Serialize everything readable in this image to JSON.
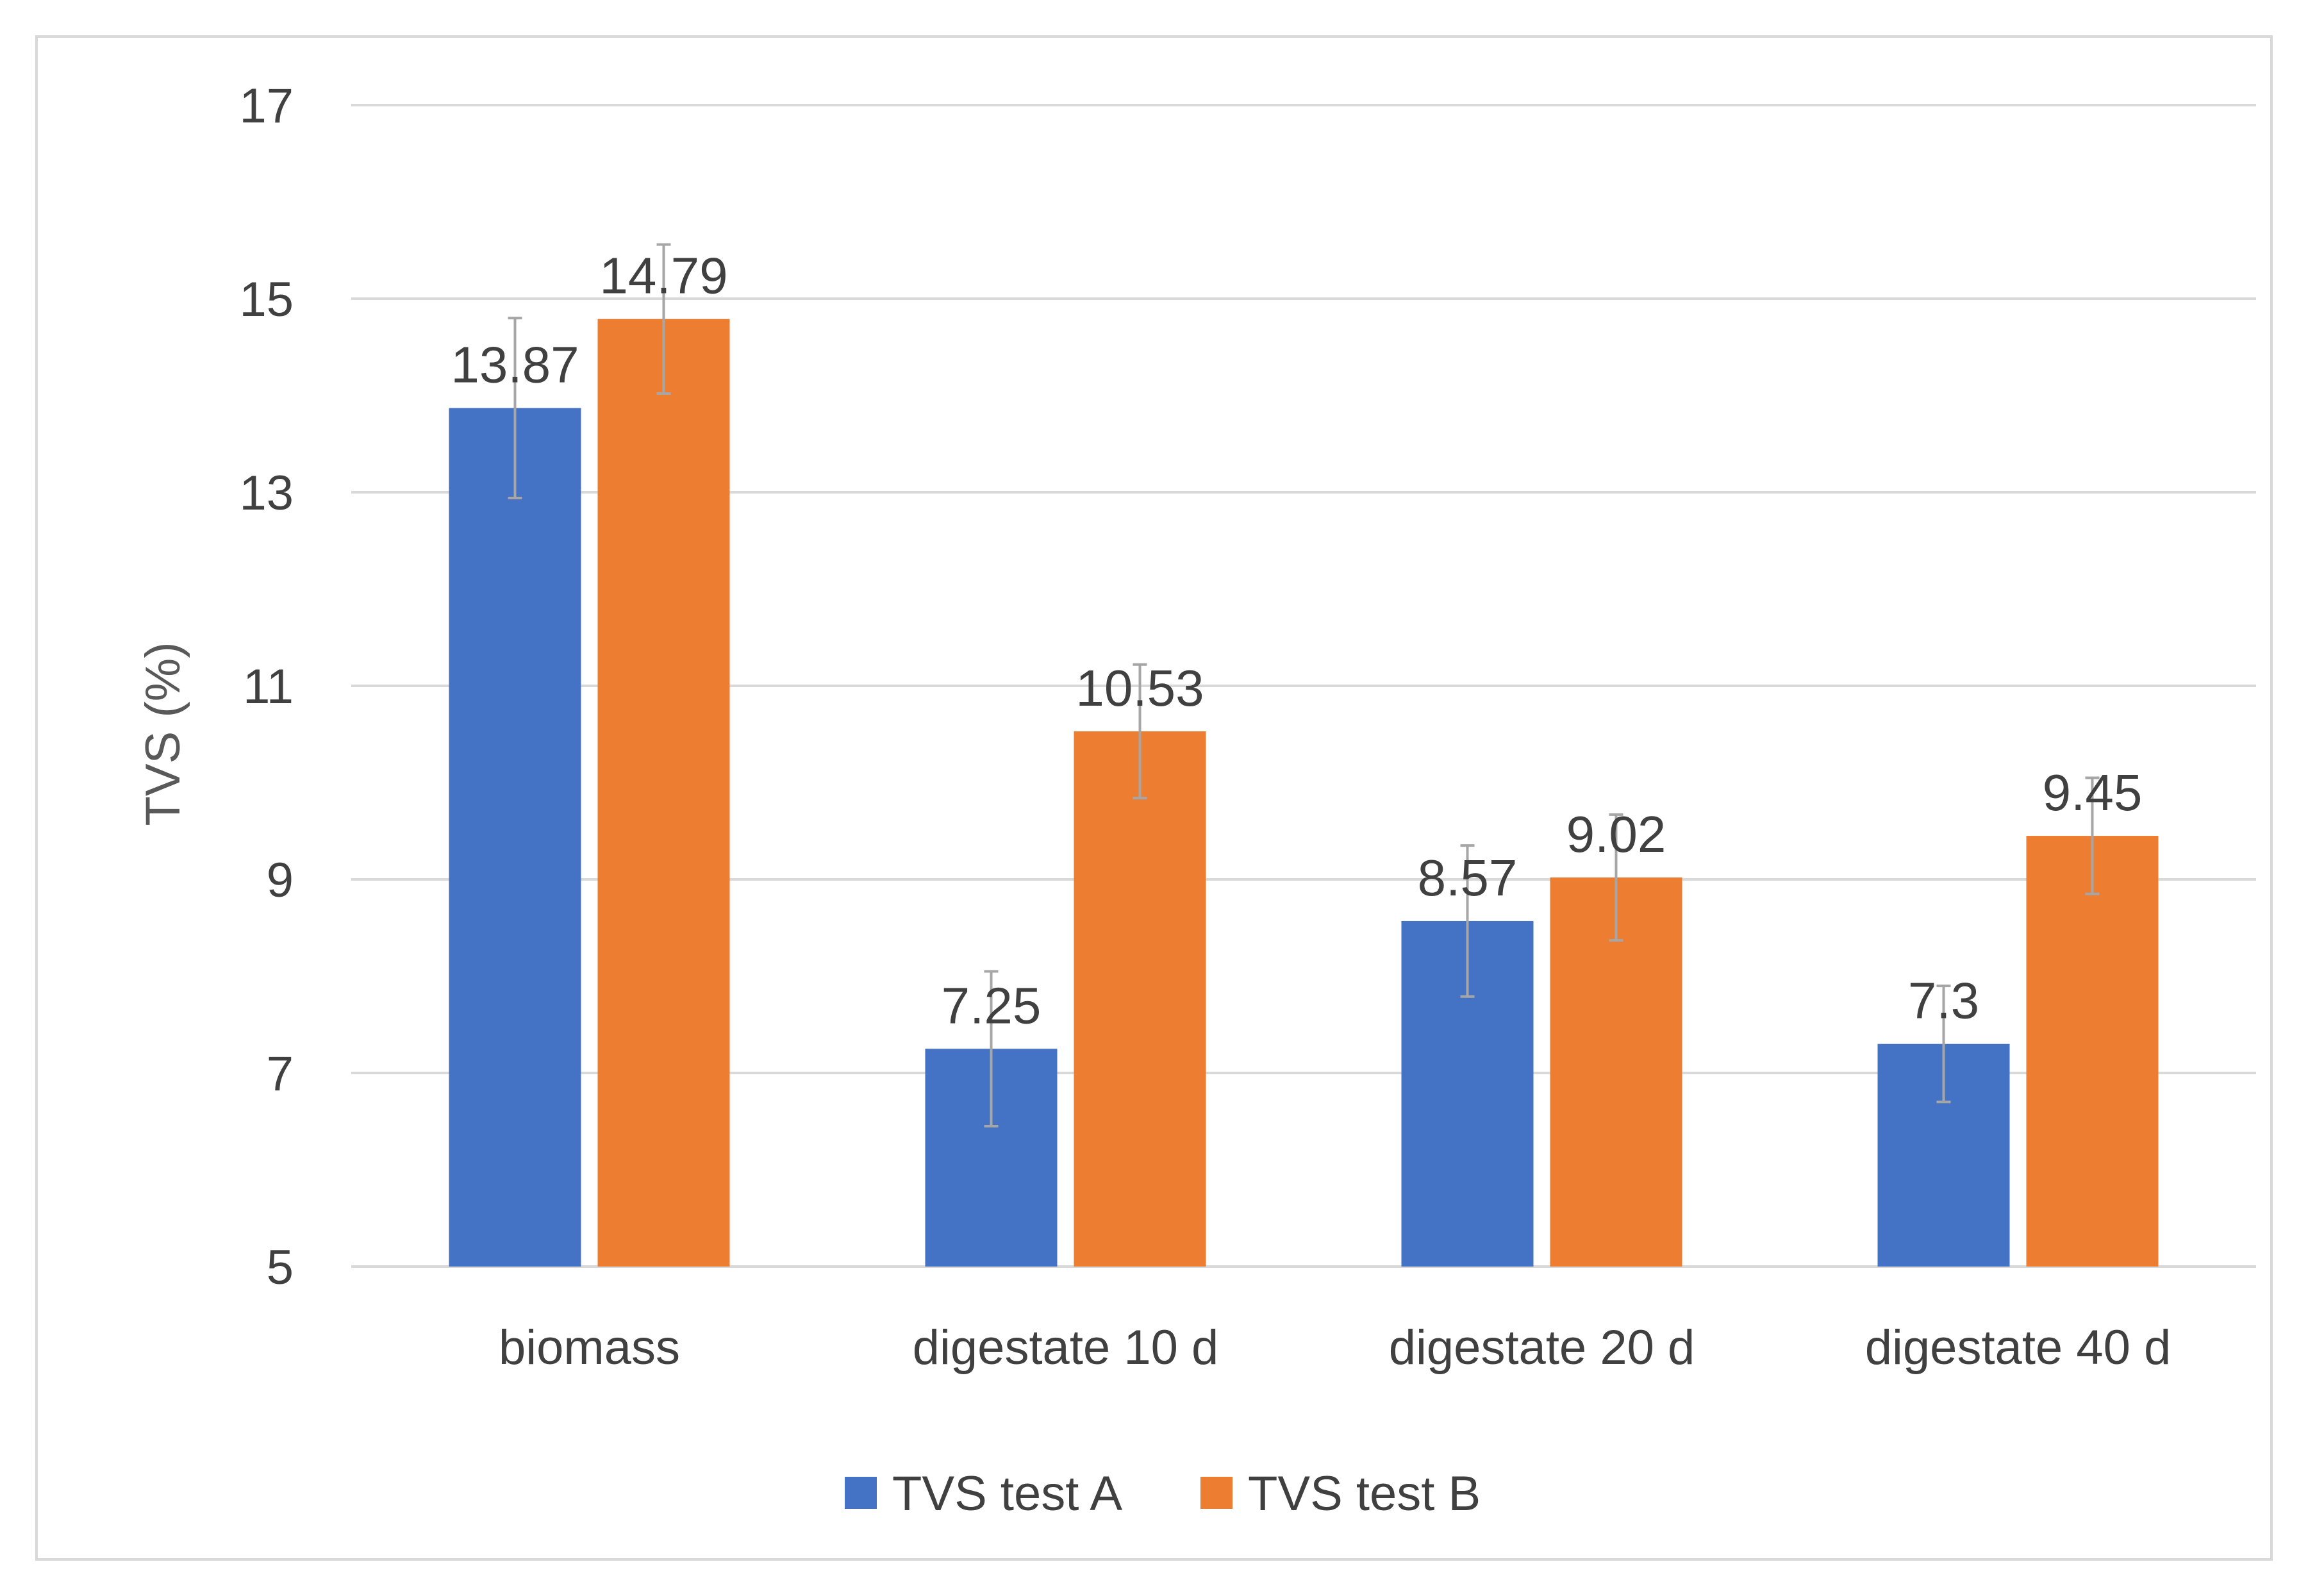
{
  "chart_data": {
    "type": "bar",
    "title": "",
    "xlabel": "",
    "ylabel": "TVS (%)",
    "ylim": [
      5,
      17
    ],
    "yticks": [
      5,
      7,
      9,
      11,
      13,
      15,
      17
    ],
    "grid": true,
    "legend_position": "bottom",
    "categories": [
      "biomass",
      "digestate 10 d",
      "digestate 20 d",
      "digestate 40 d"
    ],
    "series": [
      {
        "name": "TVS test A",
        "color": "#4472c4",
        "values": [
          13.87,
          7.25,
          8.57,
          7.3
        ],
        "labels": [
          "13.87",
          "7.25",
          "8.57",
          "7.3"
        ],
        "errors": [
          0.93,
          0.8,
          0.78,
          0.6
        ]
      },
      {
        "name": "TVS test B",
        "color": "#ed7d31",
        "values": [
          14.79,
          10.53,
          9.02,
          9.45
        ],
        "labels": [
          "14.79",
          "10.53",
          "9.02",
          "9.45"
        ],
        "errors": [
          0.77,
          0.69,
          0.65,
          0.6
        ]
      }
    ],
    "gridline_color": "#d9d9d9",
    "error_bar_color": "#a6a6a6"
  }
}
